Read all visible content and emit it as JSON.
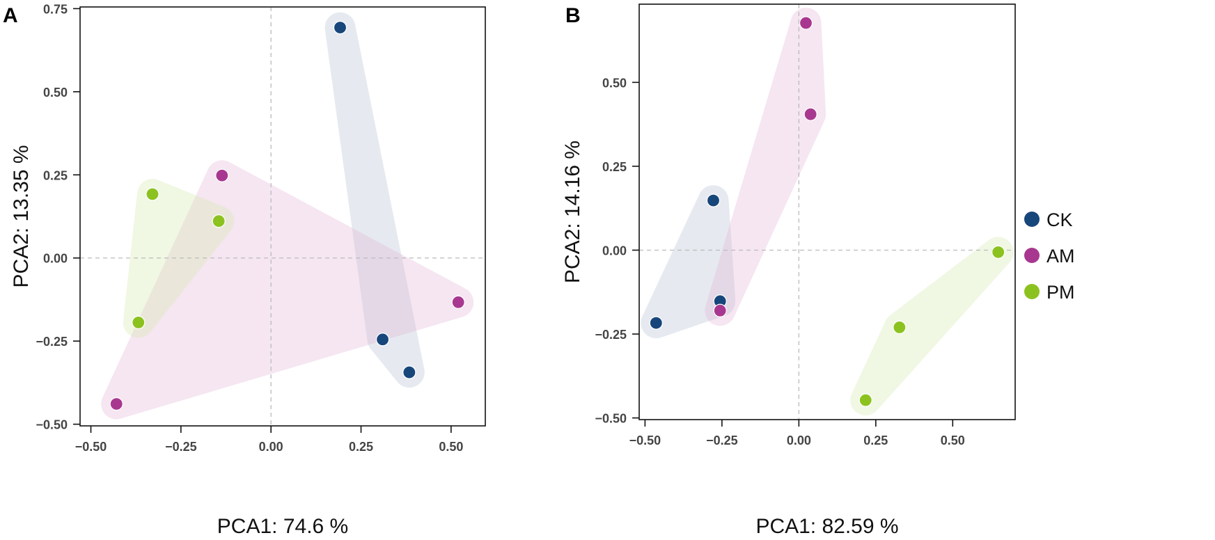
{
  "chart_data": [
    {
      "type": "scatter",
      "panel_label": "A",
      "xlabel": "PCA1: 74.6 %",
      "ylabel": "PCA2: 13.35 %",
      "xlim": [
        -0.53,
        0.595
      ],
      "ylim": [
        -0.505,
        0.755
      ],
      "x_ticks": [
        -0.5,
        -0.25,
        0,
        0.25,
        0.5
      ],
      "x_tick_labels": [
        "−0.50",
        "−0.25",
        "0.00",
        "0.25",
        "0.50"
      ],
      "y_ticks": [
        -0.5,
        -0.25,
        0,
        0.25,
        0.5,
        0.75
      ],
      "y_tick_labels": [
        "−0.50",
        "−0.25",
        "0.00",
        "0.25",
        "0.50",
        "0.75"
      ],
      "reference_lines": {
        "x": 0,
        "y": 0,
        "style": "dashed"
      },
      "series": [
        {
          "name": "CK",
          "points": [
            [
              0.192,
              0.693
            ],
            [
              0.31,
              -0.245
            ],
            [
              0.384,
              -0.344
            ]
          ]
        },
        {
          "name": "AM",
          "points": [
            [
              -0.136,
              0.248
            ],
            [
              0.52,
              -0.133
            ],
            [
              -0.429,
              -0.439
            ]
          ]
        },
        {
          "name": "PM",
          "points": [
            [
              -0.329,
              0.192
            ],
            [
              -0.145,
              0.111
            ],
            [
              -0.368,
              -0.194
            ]
          ]
        }
      ]
    },
    {
      "type": "scatter",
      "panel_label": "B",
      "xlabel": "PCA1: 82.59 %",
      "ylabel": "PCA2: 14.16 %",
      "xlim": [
        -0.519,
        0.703
      ],
      "ylim": [
        -0.505,
        0.733
      ],
      "x_ticks": [
        -0.5,
        -0.25,
        0,
        0.25,
        0.5
      ],
      "x_tick_labels": [
        "−0.50",
        "−0.25",
        "0.00",
        "0.25",
        "0.50"
      ],
      "y_ticks": [
        -0.5,
        -0.25,
        0,
        0.25,
        0.5
      ],
      "y_tick_labels": [
        "−0.50",
        "−0.25",
        "0.00",
        "0.25",
        "0.50"
      ],
      "reference_lines": {
        "x": 0,
        "y": 0,
        "style": "dashed"
      },
      "series": [
        {
          "name": "CK",
          "points": [
            [
              -0.278,
              0.148
            ],
            [
              -0.256,
              -0.152
            ],
            [
              -0.464,
              -0.217
            ]
          ]
        },
        {
          "name": "AM",
          "points": [
            [
              0.023,
              0.677
            ],
            [
              0.038,
              0.405
            ],
            [
              -0.256,
              -0.18
            ]
          ]
        },
        {
          "name": "PM",
          "points": [
            [
              0.648,
              -0.006
            ],
            [
              0.327,
              -0.23
            ],
            [
              0.217,
              -0.447
            ]
          ]
        }
      ]
    }
  ],
  "legend": {
    "placement": "right",
    "items": [
      {
        "name": "CK",
        "color": "#17467a"
      },
      {
        "name": "AM",
        "color": "#a8388f"
      },
      {
        "name": "PM",
        "color": "#8cc21f"
      }
    ]
  },
  "hull_colors": {
    "CK": "#b9c6d6",
    "AM": "#e3b8d9",
    "PM": "#d6ebb0"
  }
}
